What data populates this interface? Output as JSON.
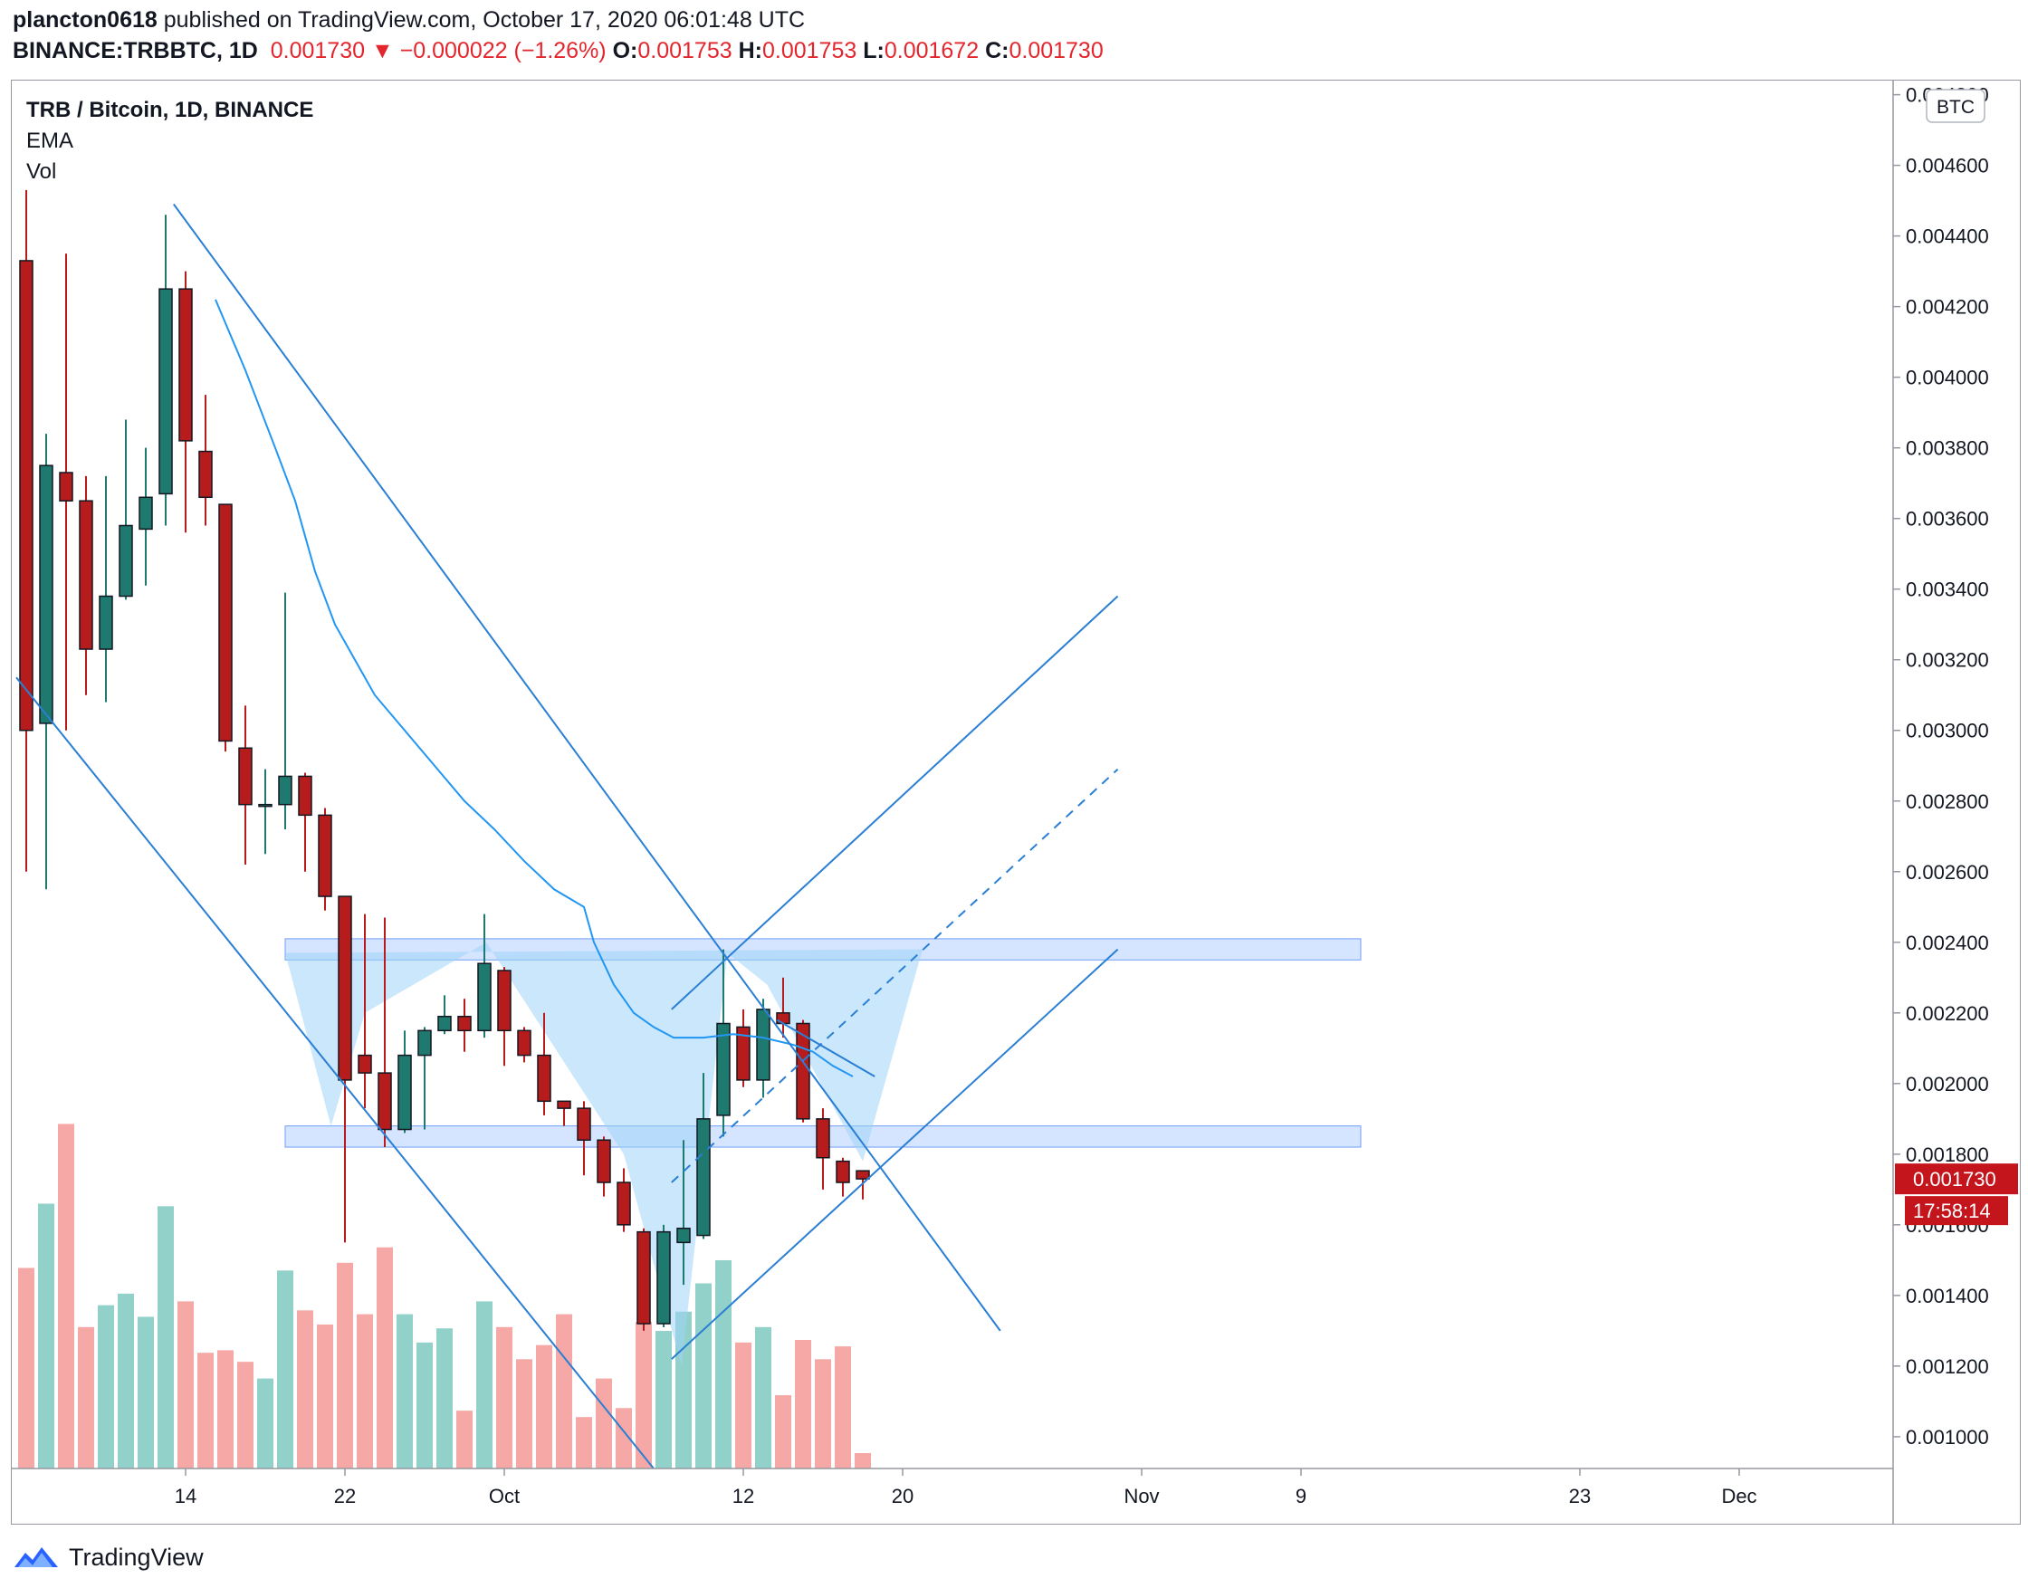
{
  "header": {
    "author": "plancton0618",
    "published": "published on TradingView.com, October 17, 2020 06:01:48 UTC",
    "symbol": "BINANCE:TRBBTC, 1D",
    "last": "0.001730",
    "arrow": "▼",
    "change": "−0.000022 (−1.26%)",
    "o_label": "O:",
    "o": "0.001753",
    "h_label": "H:",
    "h": "0.001753",
    "l_label": "L:",
    "l": "0.001672",
    "c_label": "C:",
    "c": "0.001730"
  },
  "legend": {
    "title": "TRB / Bitcoin, 1D, BINANCE",
    "ema": "EMA",
    "vol": "Vol"
  },
  "price_axis": {
    "currency": "BTC",
    "last_price": "0.001730",
    "countdown": "17:58:14"
  },
  "brand": "TradingView",
  "colors": {
    "up": "#1e7a6e",
    "down": "#b71c1c",
    "vol_up": "#92d1c9",
    "vol_down": "#f5a8a6",
    "line": "#2a7fd4",
    "zone": "#c7dbff",
    "label_bg": "#c4151c"
  },
  "chart_data": {
    "type": "candlestick",
    "title": "TRB / Bitcoin, 1D, BINANCE",
    "ylim": [
      0.00091,
      0.00484
    ],
    "y_ticks": [
      0.001,
      0.0012,
      0.0014,
      0.0016,
      0.0018,
      0.002,
      0.0022,
      0.0024,
      0.0026,
      0.0028,
      0.003,
      0.0032,
      0.0034,
      0.0036,
      0.0038,
      0.004,
      0.0042,
      0.0044,
      0.0046,
      0.0048
    ],
    "x_ticks": [
      {
        "label": "14",
        "day": 14
      },
      {
        "label": "22",
        "day": 22
      },
      {
        "label": "Oct",
        "day": 30
      },
      {
        "label": "12",
        "day": 42
      },
      {
        "label": "20",
        "day": 50
      },
      {
        "label": "Nov",
        "day": 62
      },
      {
        "label": "9",
        "day": 70
      },
      {
        "label": "23",
        "day": 84
      },
      {
        "label": "Dec",
        "day": 92
      }
    ],
    "candles": [
      {
        "day": 6,
        "o": 0.00433,
        "h": 0.00453,
        "l": 0.0026,
        "c": 0.003,
        "v": 1.56
      },
      {
        "day": 7,
        "o": 0.00302,
        "h": 0.00384,
        "l": 0.00255,
        "c": 0.00375,
        "v": 2.06
      },
      {
        "day": 8,
        "o": 0.00373,
        "h": 0.00435,
        "l": 0.003,
        "c": 0.00365,
        "v": 2.68
      },
      {
        "day": 9,
        "o": 0.00365,
        "h": 0.00372,
        "l": 0.0031,
        "c": 0.00323,
        "v": 1.1
      },
      {
        "day": 10,
        "o": 0.00323,
        "h": 0.00372,
        "l": 0.00308,
        "c": 0.00338,
        "v": 1.27
      },
      {
        "day": 11,
        "o": 0.00338,
        "h": 0.00388,
        "l": 0.00337,
        "c": 0.00358,
        "v": 1.36
      },
      {
        "day": 12,
        "o": 0.00357,
        "h": 0.0038,
        "l": 0.00341,
        "c": 0.00366,
        "v": 1.18
      },
      {
        "day": 13,
        "o": 0.00367,
        "h": 0.00446,
        "l": 0.00358,
        "c": 0.00425,
        "v": 2.04
      },
      {
        "day": 14,
        "o": 0.00425,
        "h": 0.0043,
        "l": 0.00356,
        "c": 0.00382,
        "v": 1.3
      },
      {
        "day": 15,
        "o": 0.00379,
        "h": 0.00395,
        "l": 0.00358,
        "c": 0.00366,
        "v": 0.9
      },
      {
        "day": 16,
        "o": 0.00364,
        "h": 0.00364,
        "l": 0.00294,
        "c": 0.00297,
        "v": 0.92
      },
      {
        "day": 17,
        "o": 0.00295,
        "h": 0.00307,
        "l": 0.00262,
        "c": 0.00279,
        "v": 0.83
      },
      {
        "day": 18,
        "o": 0.00279,
        "h": 0.00289,
        "l": 0.00265,
        "c": 0.00279,
        "v": 0.7
      },
      {
        "day": 19,
        "o": 0.00279,
        "h": 0.00339,
        "l": 0.00272,
        "c": 0.00287,
        "v": 1.54
      },
      {
        "day": 20,
        "o": 0.00287,
        "h": 0.00288,
        "l": 0.0026,
        "c": 0.00276,
        "v": 1.23
      },
      {
        "day": 21,
        "o": 0.00276,
        "h": 0.00278,
        "l": 0.00249,
        "c": 0.00253,
        "v": 1.12
      },
      {
        "day": 22,
        "o": 0.00253,
        "h": 0.00253,
        "l": 0.00155,
        "c": 0.00201,
        "v": 1.6
      },
      {
        "day": 23,
        "o": 0.00208,
        "h": 0.00248,
        "l": 0.00193,
        "c": 0.00203,
        "v": 1.2
      },
      {
        "day": 24,
        "o": 0.00203,
        "h": 0.00247,
        "l": 0.00182,
        "c": 0.00187,
        "v": 1.72
      },
      {
        "day": 25,
        "o": 0.00187,
        "h": 0.00215,
        "l": 0.00186,
        "c": 0.00208,
        "v": 1.2
      },
      {
        "day": 26,
        "o": 0.00208,
        "h": 0.00216,
        "l": 0.00187,
        "c": 0.00215,
        "v": 0.98
      },
      {
        "day": 27,
        "o": 0.00215,
        "h": 0.00225,
        "l": 0.00214,
        "c": 0.00219,
        "v": 1.09
      },
      {
        "day": 28,
        "o": 0.00219,
        "h": 0.00224,
        "l": 0.00209,
        "c": 0.00215,
        "v": 0.45
      },
      {
        "day": 29,
        "o": 0.00215,
        "h": 0.00248,
        "l": 0.00213,
        "c": 0.00234,
        "v": 1.3
      },
      {
        "day": 30,
        "o": 0.00232,
        "h": 0.00233,
        "l": 0.00205,
        "c": 0.00215,
        "v": 1.1
      },
      {
        "day": 31,
        "o": 0.00215,
        "h": 0.00216,
        "l": 0.00206,
        "c": 0.00208,
        "v": 0.85
      },
      {
        "day": 32,
        "o": 0.00208,
        "h": 0.0022,
        "l": 0.00191,
        "c": 0.00195,
        "v": 0.96
      },
      {
        "day": 33,
        "o": 0.00195,
        "h": 0.00195,
        "l": 0.00188,
        "c": 0.00193,
        "v": 1.2
      },
      {
        "day": 34,
        "o": 0.00193,
        "h": 0.00195,
        "l": 0.00174,
        "c": 0.00184,
        "v": 0.4
      },
      {
        "day": 35,
        "o": 0.00184,
        "h": 0.00185,
        "l": 0.00168,
        "c": 0.00172,
        "v": 0.7
      },
      {
        "day": 36,
        "o": 0.00172,
        "h": 0.00176,
        "l": 0.00158,
        "c": 0.0016,
        "v": 0.47
      },
      {
        "day": 37,
        "o": 0.00158,
        "h": 0.00159,
        "l": 0.0013,
        "c": 0.00132,
        "v": 1.14
      },
      {
        "day": 38,
        "o": 0.00132,
        "h": 0.0016,
        "l": 0.00131,
        "c": 0.00158,
        "v": 1.07
      },
      {
        "day": 39,
        "o": 0.00155,
        "h": 0.00184,
        "l": 0.00143,
        "c": 0.00159,
        "v": 1.22
      },
      {
        "day": 40,
        "o": 0.00157,
        "h": 0.00203,
        "l": 0.00156,
        "c": 0.0019,
        "v": 1.44
      },
      {
        "day": 41,
        "o": 0.00191,
        "h": 0.00238,
        "l": 0.00185,
        "c": 0.00217,
        "v": 1.62
      },
      {
        "day": 42,
        "o": 0.00216,
        "h": 0.00221,
        "l": 0.00199,
        "c": 0.00201,
        "v": 0.98
      },
      {
        "day": 43,
        "o": 0.00201,
        "h": 0.00224,
        "l": 0.00196,
        "c": 0.00221,
        "v": 1.1
      },
      {
        "day": 44,
        "o": 0.0022,
        "h": 0.0023,
        "l": 0.00213,
        "c": 0.00217,
        "v": 0.57
      },
      {
        "day": 45,
        "o": 0.00217,
        "h": 0.00218,
        "l": 0.00189,
        "c": 0.0019,
        "v": 1.0
      },
      {
        "day": 46,
        "o": 0.0019,
        "h": 0.00193,
        "l": 0.0017,
        "c": 0.00179,
        "v": 0.85
      },
      {
        "day": 47,
        "o": 0.00178,
        "h": 0.00179,
        "l": 0.00168,
        "c": 0.00172,
        "v": 0.95
      },
      {
        "day": 48,
        "o": 0.001753,
        "h": 0.001753,
        "l": 0.001672,
        "c": 0.00173,
        "v": 0.12
      }
    ],
    "ema": [
      [
        15.5,
        0.00422
      ],
      [
        17,
        0.00402
      ],
      [
        18.5,
        0.0038
      ],
      [
        19.5,
        0.00365
      ],
      [
        20.5,
        0.00345
      ],
      [
        21.5,
        0.0033
      ],
      [
        22.5,
        0.0032
      ],
      [
        23.5,
        0.0031
      ],
      [
        25,
        0.003
      ],
      [
        26.5,
        0.0029
      ],
      [
        28,
        0.0028
      ],
      [
        29.5,
        0.00272
      ],
      [
        31,
        0.00263
      ],
      [
        32.5,
        0.00255
      ],
      [
        34,
        0.0025
      ],
      [
        34.5,
        0.0024
      ],
      [
        35.5,
        0.00228
      ],
      [
        36.5,
        0.0022
      ],
      [
        37.5,
        0.00216
      ],
      [
        38.5,
        0.00213
      ],
      [
        40,
        0.00213
      ],
      [
        41.5,
        0.00214
      ],
      [
        43,
        0.00213
      ],
      [
        44.5,
        0.00211
      ],
      [
        45.5,
        0.00209
      ],
      [
        46.5,
        0.00205
      ],
      [
        47.5,
        0.00202
      ]
    ],
    "zones": [
      {
        "name": "resistance",
        "from_day": 19,
        "to_day": 73,
        "low": 0.00235,
        "high": 0.00241
      },
      {
        "name": "support",
        "from_day": 19,
        "to_day": 73,
        "low": 0.00182,
        "high": 0.00188
      }
    ],
    "lines": [
      {
        "name": "downtrend-upper",
        "x1": 13.4,
        "y1": 0.00449,
        "x2": 54.9,
        "y2": 0.0013,
        "dashed": false
      },
      {
        "name": "downtrend-lower",
        "x1": 5.5,
        "y1": 0.00315,
        "x2": 37.5,
        "y2": 0.00091,
        "dashed": false
      },
      {
        "name": "channel-upper",
        "x1": 38.4,
        "y1": 0.00221,
        "x2": 60.8,
        "y2": 0.00338,
        "dashed": false
      },
      {
        "name": "channel-lower",
        "x1": 38.4,
        "y1": 0.00122,
        "x2": 60.8,
        "y2": 0.00238,
        "dashed": false
      },
      {
        "name": "channel-mid",
        "x1": 38.4,
        "y1": 0.00172,
        "x2": 60.8,
        "y2": 0.00289,
        "dashed": true
      },
      {
        "name": "target-line",
        "x1": 43.7,
        "y1": 0.00218,
        "x2": 48.6,
        "y2": 0.00202,
        "dashed": false
      }
    ],
    "pattern": [
      [
        [
          19,
          0.00237
        ],
        [
          21.3,
          0.00188
        ],
        [
          23,
          0.0022
        ],
        [
          29.1,
          0.0024
        ],
        [
          36,
          0.0018
        ],
        [
          38.9,
          0.0012
        ],
        [
          41.2,
          0.00237
        ],
        [
          43.2,
          0.00228
        ],
        [
          48,
          0.00178
        ],
        [
          51,
          0.00238
        ]
      ]
    ]
  }
}
